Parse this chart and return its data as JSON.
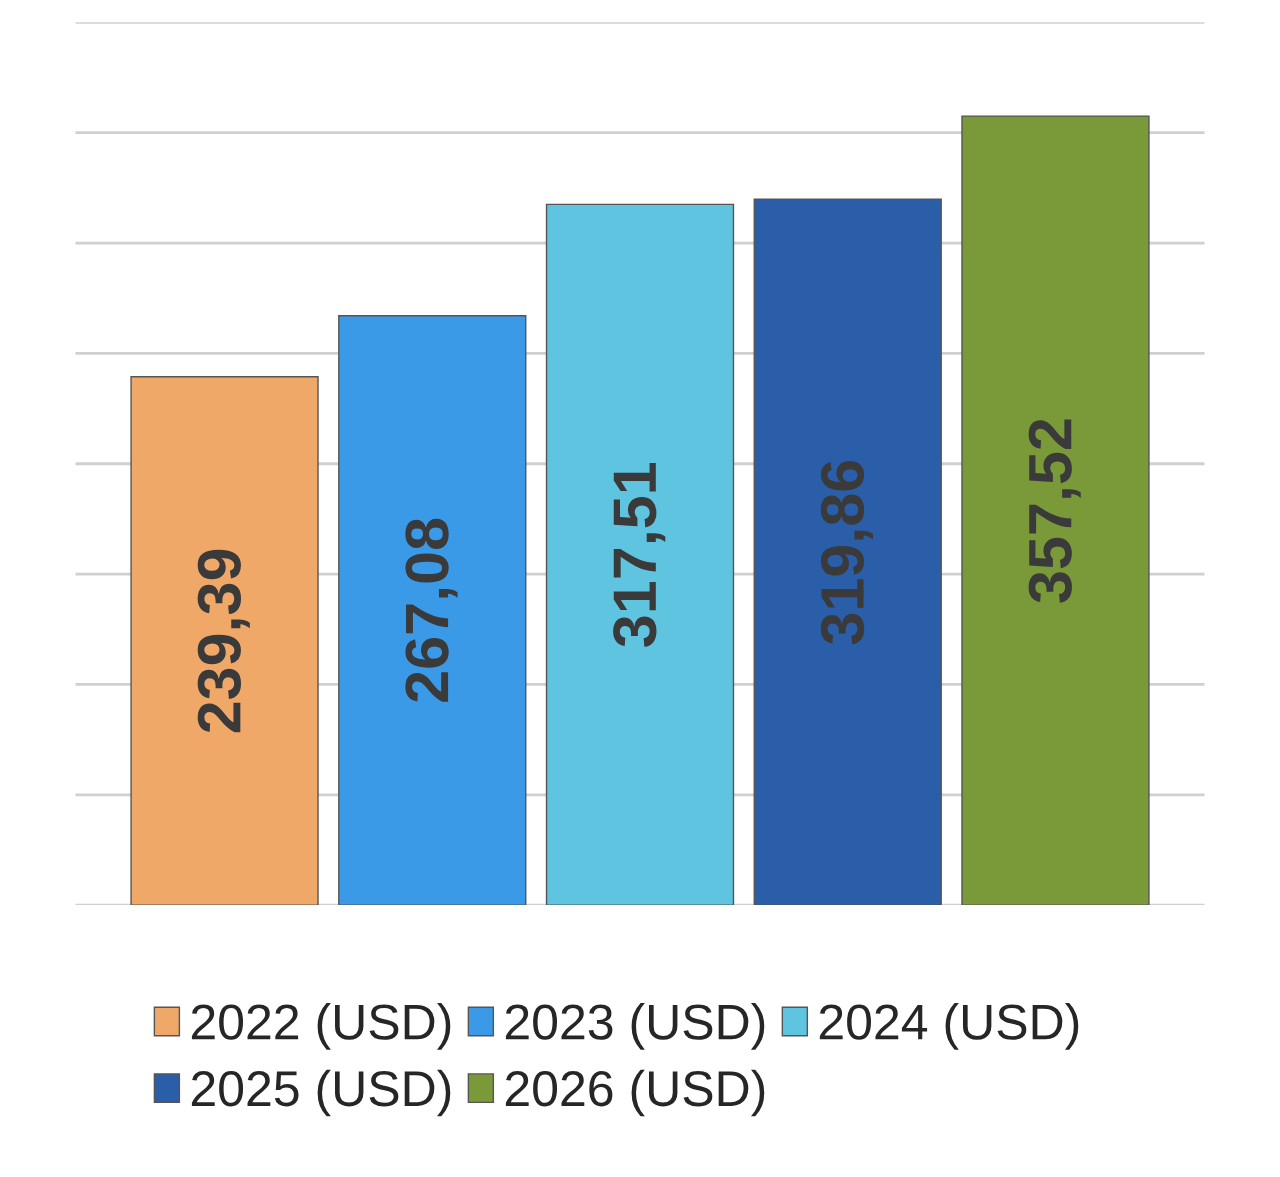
{
  "chart_data": {
    "type": "bar",
    "categories": [
      null
    ],
    "series": [
      {
        "name": "2022 (USD)",
        "color": "#f0a868",
        "values": [
          239.39
        ],
        "value_labels": [
          "239,39"
        ]
      },
      {
        "name": "2023 (USD)",
        "color": "#3b9ae8",
        "values": [
          267.08
        ],
        "value_labels": [
          "267,08"
        ]
      },
      {
        "name": "2024 (USD)",
        "color": "#5ec4e0",
        "values": [
          317.51
        ],
        "value_labels": [
          "317,51"
        ]
      },
      {
        "name": "2025 (USD)",
        "color": "#2a5ea8",
        "values": [
          319.86
        ],
        "value_labels": [
          "319,86"
        ]
      },
      {
        "name": "2026 (USD)",
        "color": "#7a9a3a",
        "values": [
          357.52
        ],
        "value_labels": [
          "357,52"
        ]
      }
    ],
    "ylim": [
      0,
      400
    ],
    "yticks": [
      {
        "value": 0,
        "label": null
      },
      {
        "value": 50,
        "label": null
      },
      {
        "value": 100,
        "label": null
      },
      {
        "value": 150,
        "label": null
      },
      {
        "value": 200,
        "label": null
      },
      {
        "value": 250,
        "label": null
      },
      {
        "value": 300,
        "label": null
      },
      {
        "value": 350,
        "label": null
      },
      {
        "value": 400,
        "label": null
      }
    ],
    "grid": "y",
    "legend": "bottom"
  }
}
